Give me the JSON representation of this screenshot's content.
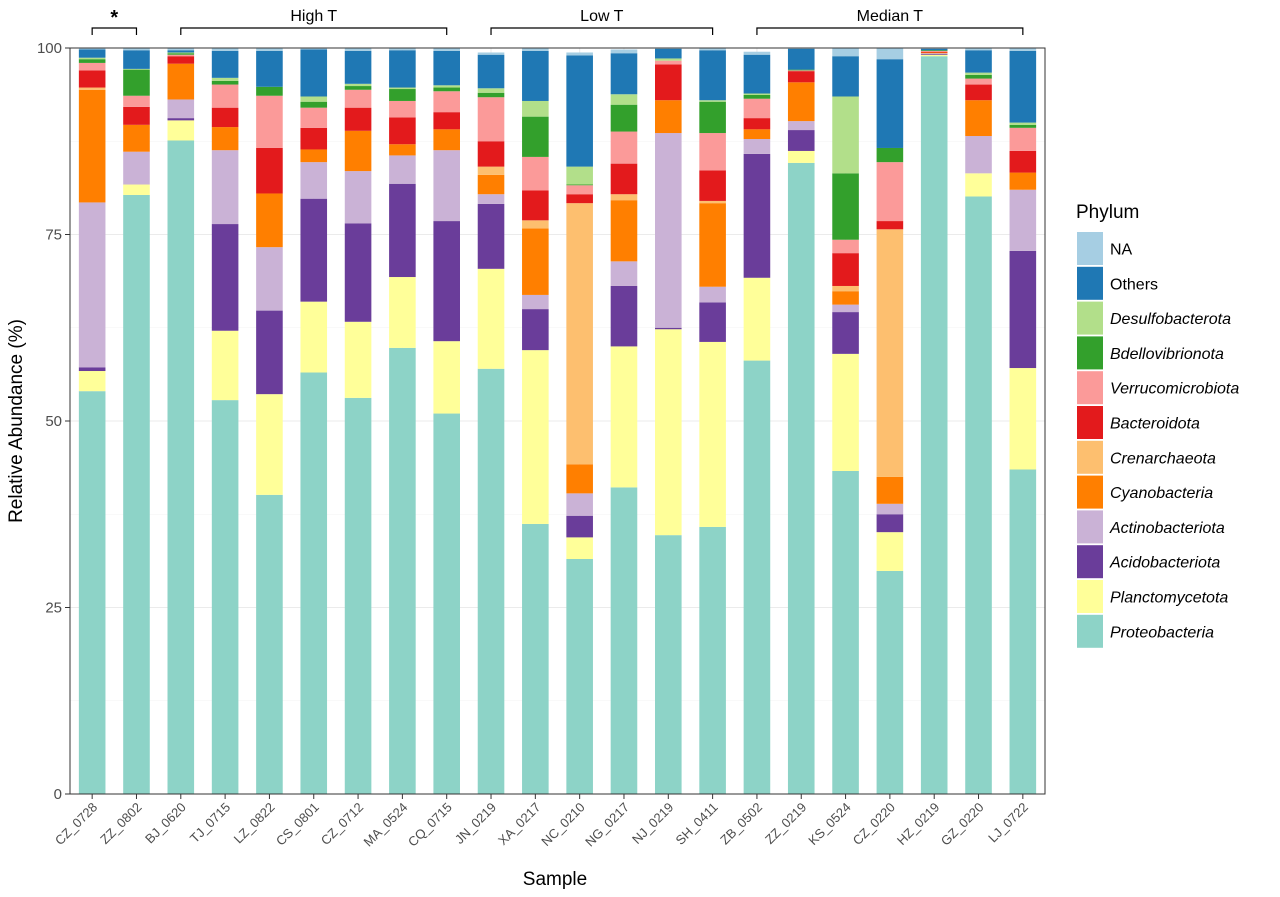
{
  "chart_data": {
    "type": "bar",
    "stacked": true,
    "xlabel": "Sample",
    "ylabel": "Relative Abundance (%)",
    "ylim": [
      0,
      100
    ],
    "yticks": [
      0,
      25,
      50,
      75,
      100
    ],
    "grid": true,
    "legend_title": "Phylum",
    "legend_position": "right",
    "categories": [
      "CZ_0728",
      "ZZ_0802",
      "BJ_0620",
      "TJ_0715",
      "LZ_0822",
      "CS_0801",
      "CZ_0712",
      "MA_0524",
      "CQ_0715",
      "JN_0219",
      "XA_0217",
      "NC_0210",
      "NG_0217",
      "NJ_0219",
      "SH_0411",
      "ZB_0502",
      "ZZ_0219",
      "KS_0524",
      "CZ_0220",
      "HZ_0219",
      "GZ_0220",
      "LJ_0722"
    ],
    "groups": [
      {
        "label": "*",
        "from": 0,
        "to": 1
      },
      {
        "label": "High T",
        "from": 2,
        "to": 8
      },
      {
        "label": "Low T",
        "from": 9,
        "to": 14
      },
      {
        "label": "Median T",
        "from": 15,
        "to": 21
      }
    ],
    "series": [
      {
        "name": "Proteobacteria",
        "color": "#8DD3C7",
        "italic": true,
        "values": [
          54.0,
          80.3,
          87.6,
          52.8,
          40.1,
          56.5,
          53.1,
          59.8,
          51.0,
          57.0,
          36.2,
          31.5,
          41.1,
          34.7,
          35.8,
          58.1,
          84.6,
          43.3,
          29.9,
          98.9,
          80.1,
          43.5
        ]
      },
      {
        "name": "Planctomycetota",
        "color": "#FFFF99",
        "italic": true,
        "values": [
          2.7,
          1.4,
          2.7,
          9.3,
          13.5,
          9.5,
          10.2,
          9.5,
          9.7,
          13.4,
          23.3,
          2.9,
          18.9,
          27.6,
          24.8,
          11.1,
          1.6,
          15.7,
          5.2,
          0.2,
          3.1,
          13.6
        ]
      },
      {
        "name": "Acidobacteriota",
        "color": "#6A3D9A",
        "italic": true,
        "values": [
          0.5,
          0.0,
          0.3,
          14.3,
          11.2,
          13.8,
          13.2,
          12.5,
          16.1,
          8.7,
          5.5,
          2.9,
          8.1,
          0.2,
          5.3,
          16.6,
          2.8,
          5.6,
          2.4,
          0.1,
          0.0,
          15.7
        ]
      },
      {
        "name": "Actinobacteriota",
        "color": "#CAB2D6",
        "italic": true,
        "values": [
          22.1,
          4.4,
          2.5,
          9.9,
          8.5,
          4.9,
          7.0,
          3.8,
          9.5,
          1.3,
          1.9,
          3.0,
          3.3,
          26.1,
          2.1,
          2.0,
          1.2,
          1.0,
          1.4,
          0.1,
          5.0,
          8.2
        ]
      },
      {
        "name": "Cyanobacteria",
        "color": "#FF7F00",
        "italic": true,
        "values": [
          15.1,
          3.6,
          4.8,
          3.1,
          7.2,
          1.7,
          5.4,
          1.5,
          2.8,
          2.6,
          8.9,
          3.9,
          8.2,
          4.4,
          11.2,
          1.3,
          5.2,
          1.8,
          3.6,
          0.1,
          4.8,
          2.3
        ]
      },
      {
        "name": "Crenarchaeota",
        "color": "#FDBF6F",
        "italic": true,
        "values": [
          0.3,
          0.0,
          0.0,
          0.0,
          0.0,
          0.0,
          0.0,
          0.0,
          0.0,
          1.1,
          1.1,
          35.0,
          0.8,
          0.0,
          0.3,
          0.0,
          0.0,
          0.7,
          33.2,
          0.0,
          0.0,
          0.0
        ]
      },
      {
        "name": "Bacteroidota",
        "color": "#E31A1C",
        "italic": true,
        "values": [
          2.3,
          2.4,
          1.0,
          2.6,
          6.1,
          2.9,
          3.1,
          3.6,
          2.3,
          3.4,
          4.0,
          1.2,
          4.1,
          4.8,
          4.1,
          1.5,
          1.5,
          4.4,
          1.1,
          0.1,
          2.1,
          2.9
        ]
      },
      {
        "name": "Verrucomicrobiota",
        "color": "#FB9A99",
        "italic": true,
        "values": [
          1.0,
          1.5,
          0.2,
          3.1,
          7.0,
          2.7,
          2.4,
          2.2,
          2.8,
          5.9,
          4.5,
          1.2,
          4.3,
          0.5,
          5.0,
          2.6,
          0.1,
          1.8,
          7.9,
          0.1,
          0.8,
          3.1
        ]
      },
      {
        "name": "Bdellovibrionota",
        "color": "#33A02C",
        "italic": true,
        "values": [
          0.5,
          3.5,
          0.2,
          0.5,
          1.2,
          0.8,
          0.5,
          1.6,
          0.5,
          0.6,
          5.4,
          0.1,
          3.6,
          0.0,
          4.2,
          0.5,
          0.1,
          8.9,
          1.9,
          0.1,
          0.5,
          0.4
        ]
      },
      {
        "name": "Desulfobacterota",
        "color": "#B2DF8A",
        "italic": true,
        "values": [
          0.2,
          0.1,
          0.1,
          0.4,
          0.0,
          0.7,
          0.3,
          0.2,
          0.3,
          0.6,
          2.1,
          2.4,
          1.4,
          0.3,
          0.2,
          0.2,
          0.0,
          10.3,
          0.0,
          0.0,
          0.3,
          0.3
        ]
      },
      {
        "name": "Others",
        "color": "#1F78B4",
        "italic": false,
        "values": [
          1.1,
          2.5,
          0.3,
          3.6,
          4.8,
          6.3,
          4.4,
          5.0,
          4.6,
          4.5,
          6.7,
          14.9,
          5.5,
          1.3,
          6.7,
          5.2,
          2.8,
          5.4,
          11.9,
          0.2,
          3.0,
          9.6
        ]
      },
      {
        "name": "NA",
        "color": "#A6CEE3",
        "italic": false,
        "values": [
          0.2,
          0.3,
          0.3,
          0.4,
          0.4,
          0.2,
          0.4,
          0.3,
          0.4,
          0.3,
          0.4,
          0.4,
          0.5,
          0.1,
          0.3,
          0.4,
          0.1,
          1.1,
          1.5,
          0.3,
          0.3,
          0.4
        ]
      }
    ],
    "legend_order": [
      "NA",
      "Others",
      "Desulfobacterota",
      "Bdellovibrionota",
      "Verrucomicrobiota",
      "Bacteroidota",
      "Crenarchaeota",
      "Cyanobacteria",
      "Actinobacteriota",
      "Acidobacteriota",
      "Planctomycetota",
      "Proteobacteria"
    ]
  }
}
